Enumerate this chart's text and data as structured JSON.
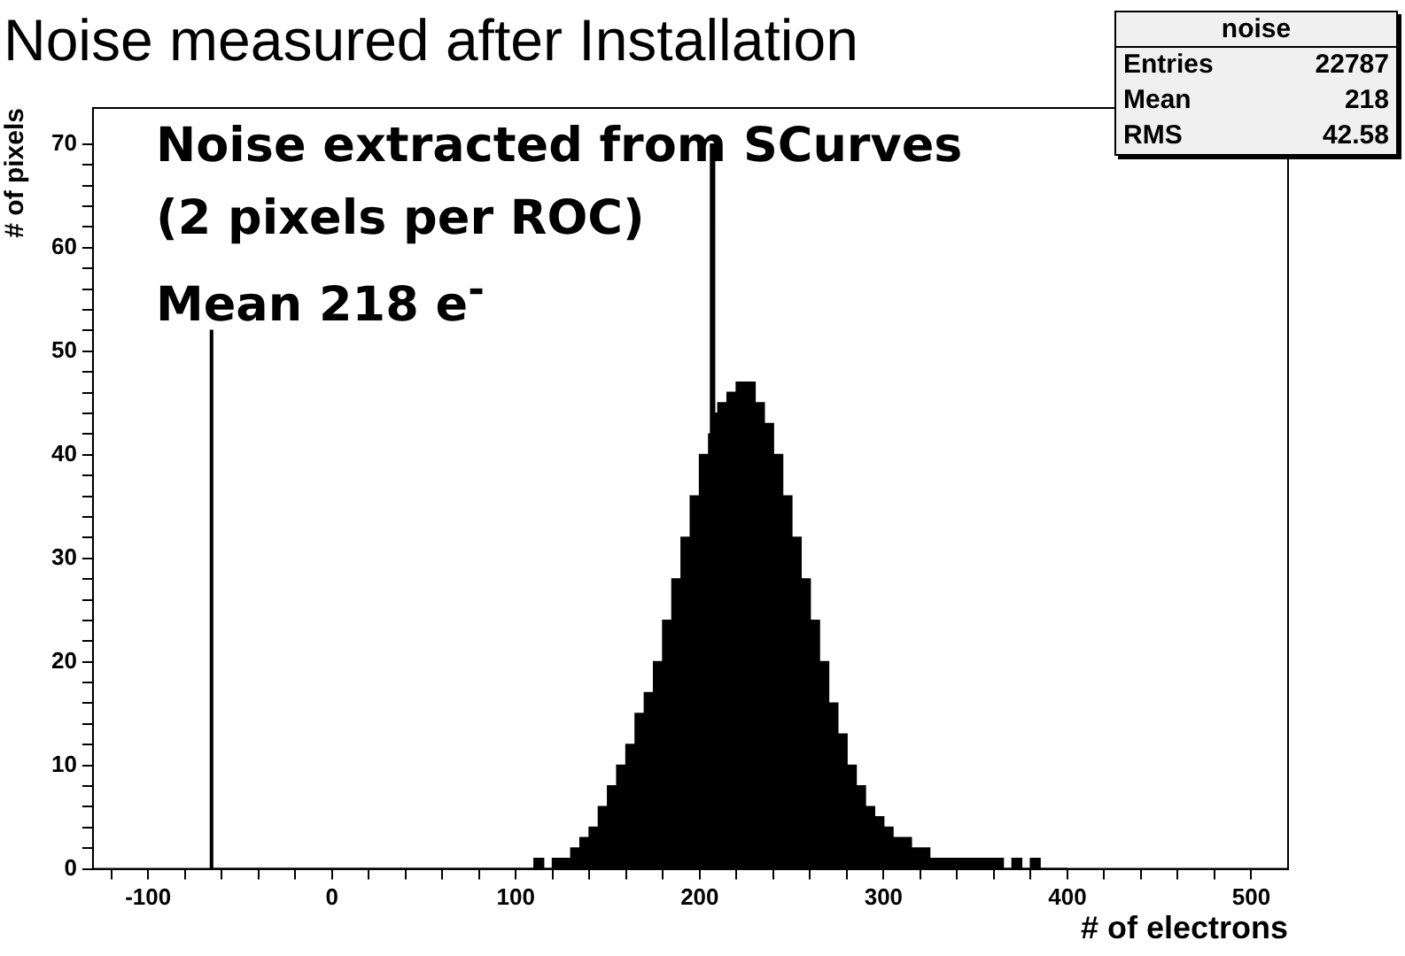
{
  "chart_data": {
    "type": "histogram",
    "title": "Noise measured after Installation",
    "xlabel": "# of electrons",
    "ylabel": "# of pixels",
    "annotations": [
      "Noise extracted from SCurves",
      "(2 pixels per ROC)",
      "Mean 218 e$^{-}$",
      "noise",
      "Entries",
      "22787",
      "Mean",
      "218",
      "RMS",
      "42.58"
    ],
    "bins": [
      -66,
      -65,
      100,
      105,
      110,
      115,
      120,
      125,
      130,
      135,
      140,
      145,
      150,
      155,
      160,
      165,
      170,
      175,
      180,
      185,
      190,
      195,
      200,
      205,
      206,
      208,
      210,
      215,
      220,
      225,
      230,
      235,
      240,
      245,
      250,
      255,
      260,
      265,
      270,
      275,
      280,
      285,
      290,
      295,
      300,
      305,
      310,
      315,
      320,
      325,
      330,
      335,
      340,
      345,
      350,
      355,
      360,
      365,
      370,
      375,
      380,
      385,
      390,
      395,
      400
    ],
    "values": [
      52,
      0,
      0,
      0,
      1,
      0,
      1,
      1,
      2,
      3,
      4,
      6,
      8,
      10,
      12,
      15,
      17,
      20,
      24,
      28,
      32,
      36,
      40,
      42,
      70,
      44,
      45,
      46,
      47,
      47,
      45,
      43,
      40,
      36,
      32,
      28,
      24,
      20,
      16,
      13,
      10,
      8,
      6,
      5,
      4,
      3,
      3,
      2,
      2,
      1,
      1,
      1,
      1,
      1,
      1,
      1,
      1,
      0,
      1,
      0,
      1,
      0,
      0,
      0
    ],
    "color": "#000000",
    "xlim": [
      -130,
      520
    ],
    "ylim": [
      0,
      73.5
    ],
    "xticks": [
      {
        "value": -120,
        "label": null
      },
      -100,
      {
        "value": -80,
        "label": null
      },
      {
        "value": -60,
        "label": null
      },
      {
        "value": -40,
        "label": null
      },
      {
        "value": -20,
        "label": null
      },
      0,
      {
        "value": 20,
        "label": null
      },
      {
        "value": 40,
        "label": null
      },
      {
        "value": 60,
        "label": null
      },
      {
        "value": 80,
        "label": null
      },
      100,
      {
        "value": 120,
        "label": null
      },
      {
        "value": 140,
        "label": null
      },
      {
        "value": 160,
        "label": null
      },
      {
        "value": 180,
        "label": null
      },
      200,
      {
        "value": 220,
        "label": null
      },
      {
        "value": 240,
        "label": null
      },
      {
        "value": 260,
        "label": null
      },
      {
        "value": 280,
        "label": null
      },
      300,
      {
        "value": 320,
        "label": null
      },
      {
        "value": 340,
        "label": null
      },
      {
        "value": 360,
        "label": null
      },
      {
        "value": 380,
        "label": null
      },
      400,
      {
        "value": 420,
        "label": null
      },
      {
        "value": 440,
        "label": null
      },
      {
        "value": 460,
        "label": null
      },
      {
        "value": 480,
        "label": null
      },
      500
    ],
    "yticks": [
      0,
      {
        "value": 2,
        "label": null
      },
      {
        "value": 4,
        "label": null
      },
      {
        "value": 6,
        "label": null
      },
      {
        "value": 8,
        "label": null
      },
      10,
      {
        "value": 12,
        "label": null
      },
      {
        "value": 14,
        "label": null
      },
      {
        "value": 16,
        "label": null
      },
      {
        "value": 18,
        "label": null
      },
      20,
      {
        "value": 22,
        "label": null
      },
      {
        "value": 24,
        "label": null
      },
      {
        "value": 26,
        "label": null
      },
      {
        "value": 28,
        "label": null
      },
      30,
      {
        "value": 32,
        "label": null
      },
      {
        "value": 34,
        "label": null
      },
      {
        "value": 36,
        "label": null
      },
      {
        "value": 38,
        "label": null
      },
      40,
      {
        "value": 42,
        "label": null
      },
      {
        "value": 44,
        "label": null
      },
      {
        "value": 46,
        "label": null
      },
      {
        "value": 48,
        "label": null
      },
      50,
      {
        "value": 52,
        "label": null
      },
      {
        "value": 54,
        "label": null
      },
      {
        "value": 56,
        "label": null
      },
      {
        "value": 58,
        "label": null
      },
      60,
      {
        "value": 62,
        "label": null
      },
      {
        "value": 64,
        "label": null
      },
      {
        "value": 66,
        "label": null
      },
      {
        "value": 68,
        "label": null
      },
      70
    ]
  }
}
